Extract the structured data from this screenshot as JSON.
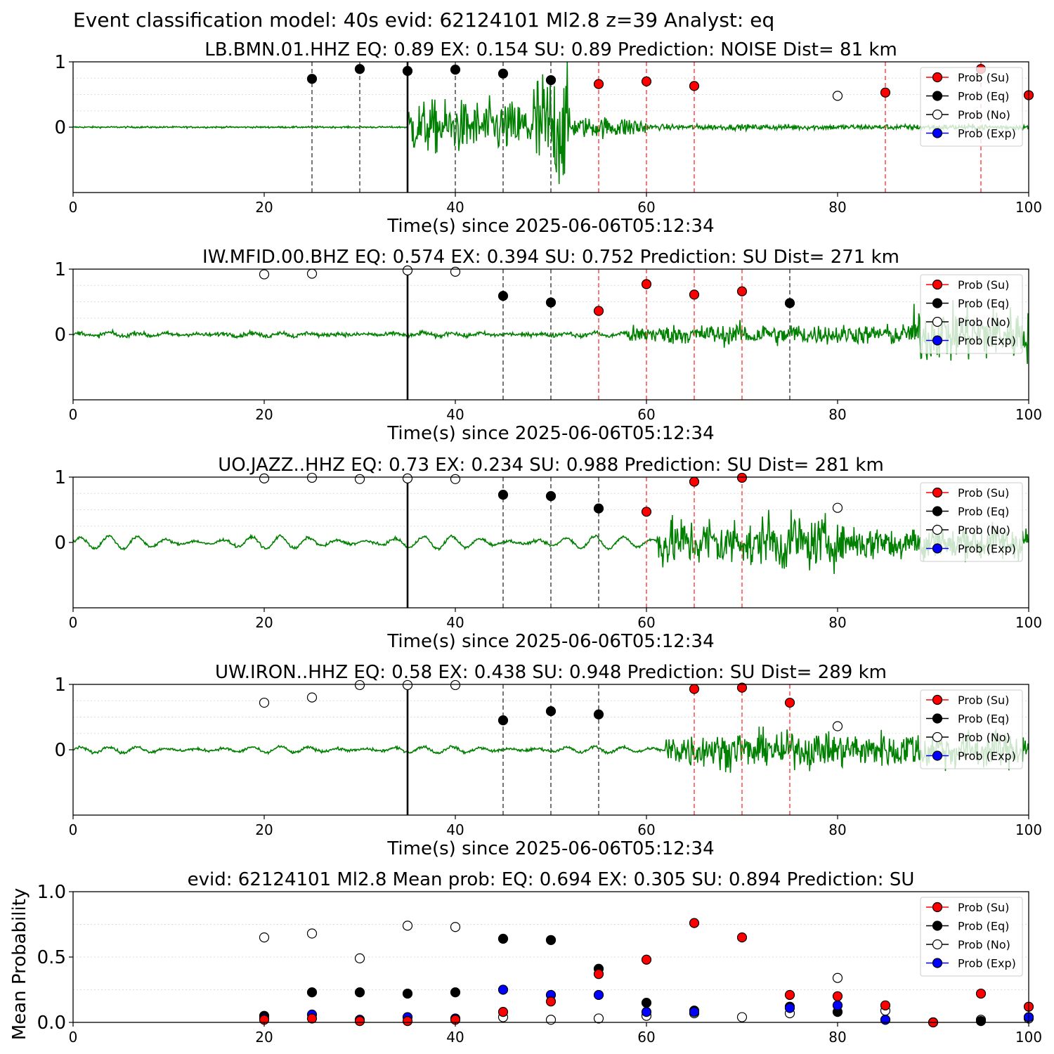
{
  "suptitle": "Event classification model: 40s evid: 62124101 Ml2.8 z=39 Analyst: eq",
  "colors": {
    "trace": "#008000",
    "su": "#ff0000",
    "eq": "#000000",
    "no": "#ffffff",
    "exp": "#0000ff",
    "su_line": "#ff5555",
    "eq_line": "#555555",
    "pick_line": "#000000"
  },
  "legend": [
    "Prob (Su)",
    "Prob (Eq)",
    "Prob (No)",
    "Prob (Exp)"
  ],
  "xlabel": "Time(s) since 2025-06-06T05:12:34",
  "chart_data": [
    {
      "type": "scatter",
      "title": "LB.BMN.01.HHZ   EQ: 0.89  EX: 0.154  SU: 0.89   Prediction: NOISE    Dist= 81 km",
      "xlabel": "Time(s) since 2025-06-06T05:12:34",
      "xlim": [
        0,
        100
      ],
      "ylim": [
        -1,
        1
      ],
      "xticks": [
        0,
        20,
        40,
        60,
        80,
        100
      ],
      "yticks": [
        0,
        1
      ],
      "pick_time": 35,
      "waveform": {
        "noise": 0.012,
        "segments": [
          [
            35,
            48,
            0.38
          ],
          [
            48,
            52,
            0.85
          ],
          [
            52,
            60,
            0.15
          ],
          [
            60,
            100,
            0.04
          ]
        ]
      },
      "vlines_eq": [
        25,
        30,
        40,
        45,
        50
      ],
      "vlines_su": [
        55,
        60,
        65,
        85,
        95
      ],
      "points": [
        {
          "x": 25,
          "y": 0.74,
          "class": "eq"
        },
        {
          "x": 30,
          "y": 0.89,
          "class": "eq"
        },
        {
          "x": 35,
          "y": 0.86,
          "class": "eq"
        },
        {
          "x": 40,
          "y": 0.88,
          "class": "eq"
        },
        {
          "x": 45,
          "y": 0.82,
          "class": "eq"
        },
        {
          "x": 50,
          "y": 0.72,
          "class": "eq"
        },
        {
          "x": 55,
          "y": 0.66,
          "class": "su"
        },
        {
          "x": 60,
          "y": 0.7,
          "class": "su"
        },
        {
          "x": 65,
          "y": 0.63,
          "class": "su"
        },
        {
          "x": 80,
          "y": 0.48,
          "class": "no"
        },
        {
          "x": 85,
          "y": 0.53,
          "class": "su"
        },
        {
          "x": 95,
          "y": 0.89,
          "class": "su"
        },
        {
          "x": 100,
          "y": 0.49,
          "class": "su"
        }
      ]
    },
    {
      "type": "scatter",
      "title": "IW.MFID.00.BHZ   EQ: 0.574  EX: 0.394  SU: 0.752   Prediction: SU    Dist= 271 km",
      "xlabel": "Time(s) since 2025-06-06T05:12:34",
      "xlim": [
        0,
        100
      ],
      "ylim": [
        -1,
        1
      ],
      "xticks": [
        0,
        20,
        40,
        60,
        80,
        100
      ],
      "yticks": [
        0,
        1
      ],
      "pick_time": 35,
      "waveform": {
        "noise": 0.03,
        "swell": 0.03,
        "segments": [
          [
            58,
            88,
            0.14
          ],
          [
            88,
            100,
            0.4
          ]
        ]
      },
      "vlines_eq": [
        45,
        50,
        75
      ],
      "vlines_su": [
        55,
        60,
        65,
        70
      ],
      "points": [
        {
          "x": 20,
          "y": 0.92,
          "class": "no"
        },
        {
          "x": 25,
          "y": 0.93,
          "class": "no"
        },
        {
          "x": 35,
          "y": 0.98,
          "class": "no"
        },
        {
          "x": 40,
          "y": 0.96,
          "class": "no"
        },
        {
          "x": 45,
          "y": 0.59,
          "class": "eq"
        },
        {
          "x": 50,
          "y": 0.49,
          "class": "eq"
        },
        {
          "x": 55,
          "y": 0.36,
          "class": "su"
        },
        {
          "x": 60,
          "y": 0.77,
          "class": "su"
        },
        {
          "x": 65,
          "y": 0.61,
          "class": "su"
        },
        {
          "x": 70,
          "y": 0.66,
          "class": "su"
        },
        {
          "x": 75,
          "y": 0.48,
          "class": "eq"
        }
      ]
    },
    {
      "type": "scatter",
      "title": "UO.JAZZ..HHZ   EQ: 0.73  EX: 0.234  SU: 0.988   Prediction: SU    Dist= 281 km",
      "xlabel": "Time(s) since 2025-06-06T05:12:34",
      "xlim": [
        0,
        100
      ],
      "ylim": [
        -1,
        1
      ],
      "xticks": [
        0,
        20,
        40,
        60,
        80,
        100
      ],
      "yticks": [
        0,
        1
      ],
      "pick_time": 35,
      "waveform": {
        "noise": 0.02,
        "swell": 0.1,
        "segments": [
          [
            61,
            80,
            0.35
          ],
          [
            80,
            100,
            0.25
          ]
        ]
      },
      "vlines_eq": [
        45,
        50,
        55
      ],
      "vlines_su": [
        60,
        65,
        70
      ],
      "points": [
        {
          "x": 20,
          "y": 0.98,
          "class": "no"
        },
        {
          "x": 25,
          "y": 0.99,
          "class": "no"
        },
        {
          "x": 30,
          "y": 0.97,
          "class": "no"
        },
        {
          "x": 35,
          "y": 0.98,
          "class": "no"
        },
        {
          "x": 40,
          "y": 0.97,
          "class": "no"
        },
        {
          "x": 45,
          "y": 0.73,
          "class": "eq"
        },
        {
          "x": 50,
          "y": 0.71,
          "class": "eq"
        },
        {
          "x": 55,
          "y": 0.52,
          "class": "eq"
        },
        {
          "x": 60,
          "y": 0.47,
          "class": "su"
        },
        {
          "x": 65,
          "y": 0.93,
          "class": "su"
        },
        {
          "x": 70,
          "y": 0.99,
          "class": "su"
        },
        {
          "x": 80,
          "y": 0.53,
          "class": "no"
        }
      ]
    },
    {
      "type": "scatter",
      "title": "UW.IRON..HHZ   EQ: 0.58  EX: 0.438  SU: 0.948   Prediction: SU    Dist= 289 km",
      "xlabel": "Time(s) since 2025-06-06T05:12:34",
      "xlim": [
        0,
        100
      ],
      "ylim": [
        -1,
        1
      ],
      "xticks": [
        0,
        20,
        40,
        60,
        80,
        100
      ],
      "yticks": [
        0,
        1
      ],
      "pick_time": 35,
      "waveform": {
        "noise": 0.02,
        "swell": 0.05,
        "segments": [
          [
            62,
            88,
            0.25
          ],
          [
            88,
            100,
            0.25
          ]
        ]
      },
      "vlines_eq": [
        45,
        50,
        55
      ],
      "vlines_su": [
        65,
        70,
        75
      ],
      "points": [
        {
          "x": 20,
          "y": 0.72,
          "class": "no"
        },
        {
          "x": 25,
          "y": 0.8,
          "class": "no"
        },
        {
          "x": 30,
          "y": 0.99,
          "class": "no"
        },
        {
          "x": 35,
          "y": 0.99,
          "class": "no"
        },
        {
          "x": 40,
          "y": 0.99,
          "class": "no"
        },
        {
          "x": 45,
          "y": 0.45,
          "class": "eq"
        },
        {
          "x": 50,
          "y": 0.59,
          "class": "eq"
        },
        {
          "x": 55,
          "y": 0.54,
          "class": "eq"
        },
        {
          "x": 65,
          "y": 0.93,
          "class": "su"
        },
        {
          "x": 70,
          "y": 0.95,
          "class": "su"
        },
        {
          "x": 75,
          "y": 0.72,
          "class": "su"
        },
        {
          "x": 80,
          "y": 0.36,
          "class": "no"
        }
      ]
    },
    {
      "type": "scatter",
      "title": "evid: 62124101  Ml2.8   Mean prob:   EQ: 0.694  EX: 0.305  SU: 0.894   Prediction: SU",
      "xlabel": "",
      "ylabel": "Mean Probability",
      "xlim": [
        0,
        100
      ],
      "ylim": [
        0,
        1
      ],
      "xticks": [
        0,
        20,
        40,
        60,
        80,
        100
      ],
      "yticks": [
        0.0,
        0.5,
        1.0
      ],
      "ytick_labels": [
        "0.0",
        "0.5",
        "1.0"
      ],
      "series": [
        {
          "name": "Prob (No)",
          "class": "no",
          "x": [
            20,
            25,
            30,
            35,
            40,
            45,
            50,
            55,
            60,
            65,
            70,
            75,
            80,
            85,
            95,
            100
          ],
          "values": [
            0.65,
            0.68,
            0.49,
            0.74,
            0.73,
            0.04,
            0.02,
            0.03,
            0.05,
            0.07,
            0.04,
            0.07,
            0.34,
            0.09,
            0.02,
            0.03
          ]
        },
        {
          "name": "Prob (Eq)",
          "class": "eq",
          "x": [
            20,
            25,
            30,
            35,
            40,
            45,
            50,
            55,
            60,
            65,
            75,
            80,
            85,
            90,
            95
          ],
          "values": [
            0.05,
            0.23,
            0.23,
            0.22,
            0.23,
            0.64,
            0.63,
            0.41,
            0.15,
            0.09,
            0.12,
            0.08,
            0.02,
            0.0,
            0.01
          ]
        },
        {
          "name": "Prob (Exp)",
          "class": "exp",
          "x": [
            20,
            25,
            30,
            35,
            40,
            45,
            50,
            55,
            60,
            65,
            75,
            80,
            85,
            100
          ],
          "values": [
            0.03,
            0.06,
            0.02,
            0.04,
            0.03,
            0.25,
            0.21,
            0.21,
            0.08,
            0.08,
            0.11,
            0.13,
            0.02,
            0.04
          ]
        },
        {
          "name": "Prob (Su)",
          "class": "su",
          "x": [
            20,
            25,
            30,
            35,
            40,
            45,
            50,
            55,
            60,
            65,
            70,
            75,
            80,
            85,
            90,
            95,
            100
          ],
          "values": [
            0.02,
            0.03,
            0.01,
            0.01,
            0.02,
            0.08,
            0.16,
            0.37,
            0.48,
            0.76,
            0.65,
            0.21,
            0.2,
            0.13,
            0.0,
            0.22,
            0.12
          ]
        }
      ]
    }
  ]
}
